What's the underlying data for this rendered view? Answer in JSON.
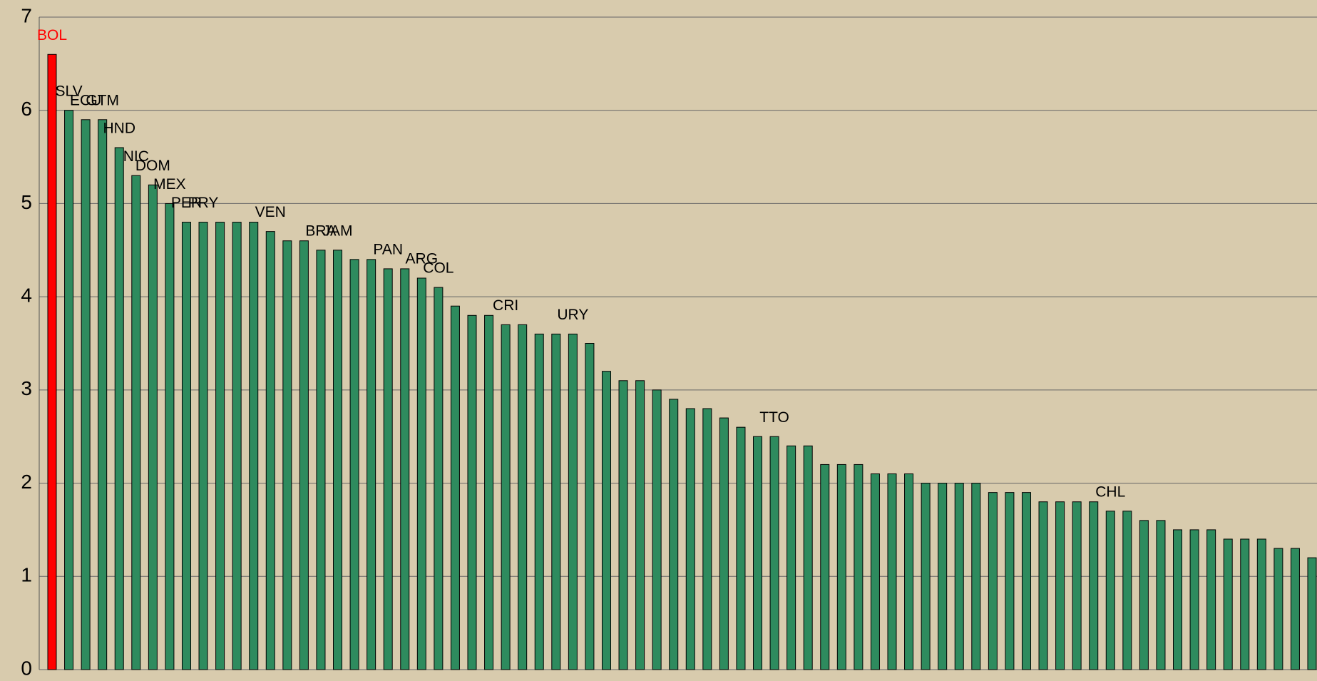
{
  "chart_data": {
    "type": "bar",
    "categories": [
      "BOL",
      "SLV",
      "ECU",
      "GTM",
      "HND",
      "NIC",
      "DOM",
      "MEX",
      "PER",
      "PRY",
      null,
      null,
      null,
      "VEN",
      null,
      null,
      "BRA",
      "JAM",
      null,
      null,
      "PAN",
      null,
      "ARG",
      "COL",
      null,
      null,
      null,
      "CRI",
      null,
      null,
      null,
      "URY",
      null,
      null,
      null,
      null,
      null,
      null,
      null,
      null,
      null,
      null,
      null,
      "TTO",
      null,
      null,
      null,
      null,
      null,
      null,
      null,
      null,
      null,
      null,
      null,
      null,
      null,
      null,
      null,
      null,
      null,
      null,
      null,
      "CHL",
      null,
      null,
      null,
      null,
      null,
      null,
      null,
      null,
      null,
      null,
      null,
      null
    ],
    "values": [
      6.6,
      6.0,
      5.9,
      5.9,
      5.6,
      5.3,
      5.2,
      5.0,
      4.8,
      4.8,
      4.8,
      4.8,
      4.8,
      4.7,
      4.6,
      4.6,
      4.5,
      4.5,
      4.4,
      4.4,
      4.3,
      4.3,
      4.2,
      4.1,
      3.9,
      3.8,
      3.8,
      3.7,
      3.7,
      3.6,
      3.6,
      3.6,
      3.5,
      3.2,
      3.1,
      3.1,
      3.0,
      2.9,
      2.8,
      2.8,
      2.7,
      2.6,
      2.5,
      2.5,
      2.4,
      2.4,
      2.2,
      2.2,
      2.2,
      2.1,
      2.1,
      2.1,
      2.0,
      2.0,
      2.0,
      2.0,
      1.9,
      1.9,
      1.9,
      1.8,
      1.8,
      1.8,
      1.8,
      1.7,
      1.7,
      1.6,
      1.6,
      1.5,
      1.5,
      1.5,
      1.4,
      1.4,
      1.4,
      1.3,
      1.3,
      1.2
    ],
    "colors": [
      "#ff0000",
      "#2e8b5e",
      "#2e8b5e",
      "#2e8b5e",
      "#2e8b5e",
      "#2e8b5e",
      "#2e8b5e",
      "#2e8b5e",
      "#2e8b5e",
      "#2e8b5e",
      "#2e8b5e",
      "#2e8b5e",
      "#2e8b5e",
      "#2e8b5e",
      "#2e8b5e",
      "#2e8b5e",
      "#2e8b5e",
      "#2e8b5e",
      "#2e8b5e",
      "#2e8b5e",
      "#2e8b5e",
      "#2e8b5e",
      "#2e8b5e",
      "#2e8b5e",
      "#2e8b5e",
      "#2e8b5e",
      "#2e8b5e",
      "#2e8b5e",
      "#2e8b5e",
      "#2e8b5e",
      "#2e8b5e",
      "#2e8b5e",
      "#2e8b5e",
      "#2e8b5e",
      "#2e8b5e",
      "#2e8b5e",
      "#2e8b5e",
      "#2e8b5e",
      "#2e8b5e",
      "#2e8b5e",
      "#2e8b5e",
      "#2e8b5e",
      "#2e8b5e",
      "#2e8b5e",
      "#2e8b5e",
      "#2e8b5e",
      "#2e8b5e",
      "#2e8b5e",
      "#2e8b5e",
      "#2e8b5e",
      "#2e8b5e",
      "#2e8b5e",
      "#2e8b5e",
      "#2e8b5e",
      "#2e8b5e",
      "#2e8b5e",
      "#2e8b5e",
      "#2e8b5e",
      "#2e8b5e",
      "#2e8b5e",
      "#2e8b5e",
      "#2e8b5e",
      "#2e8b5e",
      "#2e8b5e",
      "#2e8b5e",
      "#2e8b5e",
      "#2e8b5e",
      "#2e8b5e",
      "#2e8b5e",
      "#2e8b5e",
      "#2e8b5e",
      "#2e8b5e",
      "#2e8b5e",
      "#2e8b5e",
      "#2e8b5e",
      "#2e8b5e"
    ],
    "ylim": [
      0,
      7
    ],
    "yticks": [
      0,
      1,
      2,
      3,
      4,
      5,
      6,
      7
    ],
    "grid": true
  }
}
